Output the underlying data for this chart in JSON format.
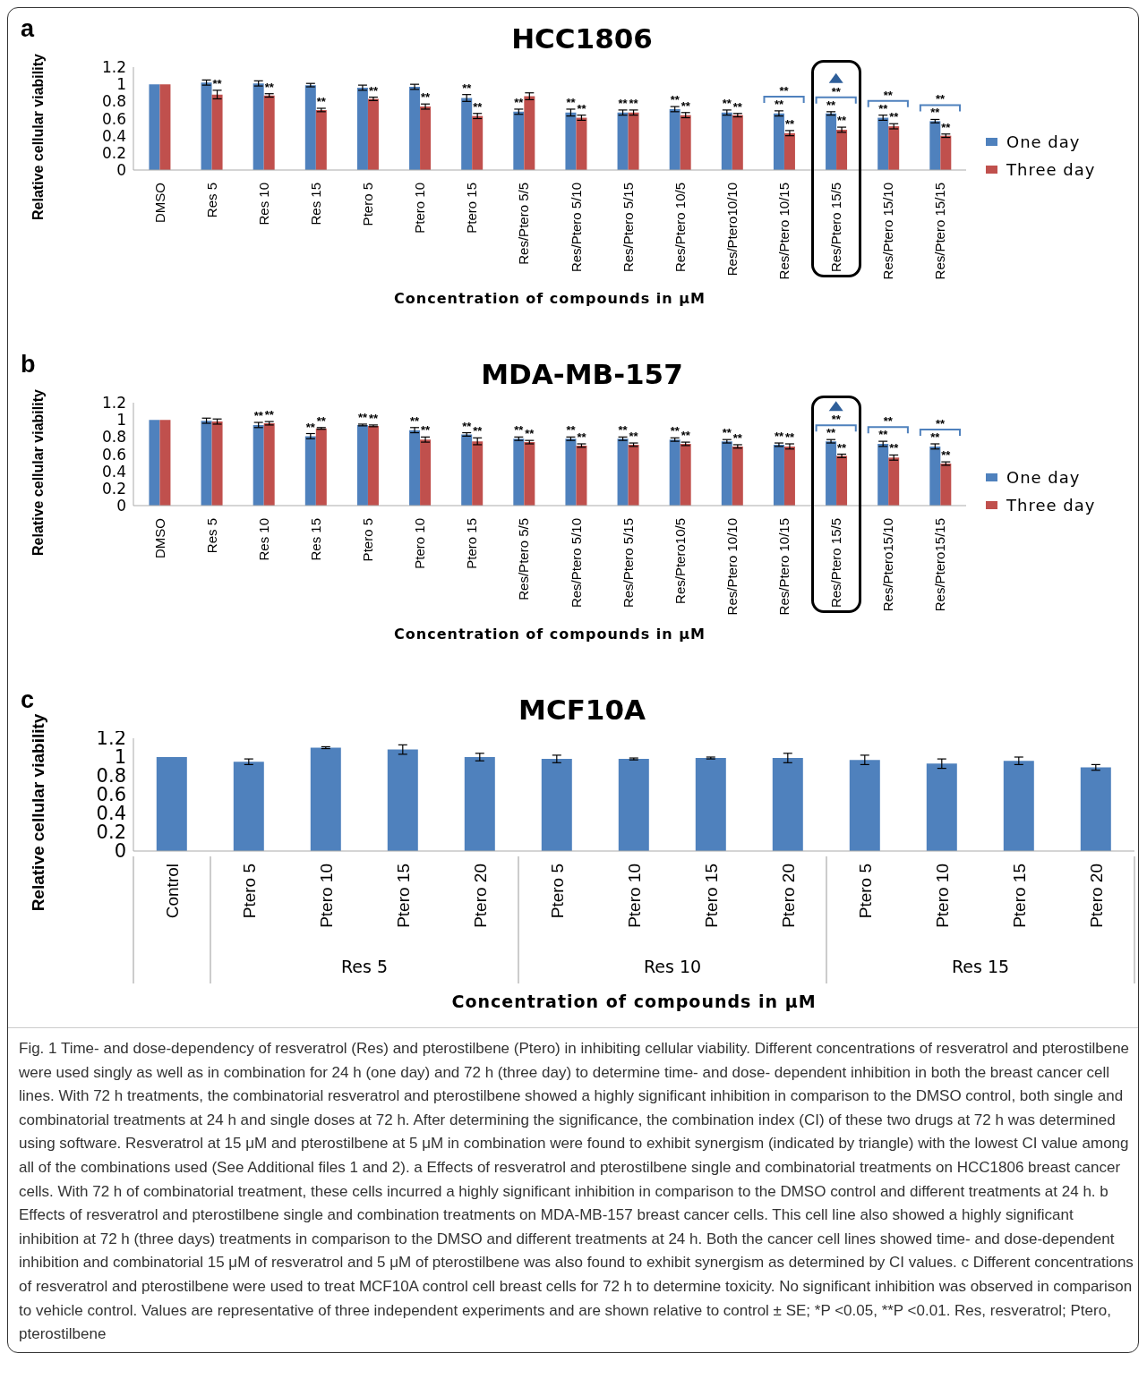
{
  "chart_data": [
    {
      "type": "bar",
      "title": "HCC1806",
      "xlabel": "Concentration of compounds in μM",
      "ylabel": "Relative cellular viability",
      "ylim": [
        0,
        1.2
      ],
      "yticks": [
        0,
        0.2,
        0.4,
        0.6,
        0.8,
        1,
        1.2
      ],
      "legend": "right",
      "categories": [
        "DMSO",
        "Res 5",
        "Res 10",
        "Res 15",
        "Ptero 5",
        "Ptero 10",
        "Ptero 15",
        "Res/Ptero 5/5",
        "Res/Ptero 5/10",
        "Res/Ptero 5/15",
        "Res/Ptero 10/5",
        "Res/Ptero10/10",
        "Res/Ptero 10/15",
        "Res/Ptero 15/5",
        "Res/Ptero 15/10",
        "Res/Ptero 15/15"
      ],
      "series": [
        {
          "name": "One day",
          "color": "#4f81bd",
          "values": [
            1,
            1.02,
            1.01,
            0.99,
            0.96,
            0.97,
            0.84,
            0.68,
            0.67,
            0.67,
            0.71,
            0.67,
            0.66,
            0.66,
            0.61,
            0.57
          ],
          "errors": [
            0,
            0.03,
            0.03,
            0.02,
            0.03,
            0.03,
            0.04,
            0.03,
            0.04,
            0.03,
            0.03,
            0.03,
            0.03,
            0.02,
            0.03,
            0.02
          ],
          "value_labels": [
            null,
            null,
            null,
            null,
            null,
            null,
            "**",
            "**",
            "**",
            "**",
            "**",
            "**",
            "**",
            "**",
            "**",
            "**"
          ]
        },
        {
          "name": "Three day",
          "color": "#c0504d",
          "values": [
            1,
            0.88,
            0.87,
            0.7,
            0.83,
            0.74,
            0.63,
            0.86,
            0.61,
            0.67,
            0.64,
            0.64,
            0.43,
            0.47,
            0.51,
            0.4
          ],
          "errors": [
            0,
            0.05,
            0.02,
            0.02,
            0.02,
            0.03,
            0.03,
            0.04,
            0.03,
            0.03,
            0.03,
            0.02,
            0.03,
            0.03,
            0.03,
            0.02
          ],
          "value_labels": [
            null,
            "**",
            "**",
            "**",
            "**",
            "**",
            "**",
            null,
            "**",
            "**",
            "**",
            "**",
            "**",
            "**",
            "**",
            "**"
          ]
        }
      ],
      "annotations": [
        "a",
        "**",
        "**",
        "**",
        "**"
      ]
    },
    {
      "type": "bar",
      "title": "MDA-MB-157",
      "xlabel": "Concentration of compounds in μM",
      "ylabel": "Relative cellular viability",
      "ylim": [
        0,
        1.2
      ],
      "yticks": [
        0,
        0.2,
        0.4,
        0.6,
        0.8,
        1,
        1.2
      ],
      "legend": "right",
      "categories": [
        "DMSO",
        "Res 5",
        "Res 10",
        "Res 15",
        "Ptero 5",
        "Ptero 10",
        "Ptero 15",
        "Res/Ptero 5/5",
        "Res/Ptero 5/10",
        "Res/Ptero 5/15",
        "Res/Ptero10/5",
        "Res/Ptero 10/10",
        "Res/Ptero 10/15",
        "Res/Ptero 15/5",
        "Res/Ptero15/10",
        "Res/Ptero15/15"
      ],
      "series": [
        {
          "name": "One day",
          "color": "#4f81bd",
          "values": [
            1,
            0.99,
            0.94,
            0.81,
            0.94,
            0.88,
            0.83,
            0.78,
            0.78,
            0.78,
            0.77,
            0.75,
            0.71,
            0.75,
            0.72,
            0.69
          ],
          "errors": [
            0,
            0.03,
            0.03,
            0.03,
            0.01,
            0.03,
            0.02,
            0.02,
            0.02,
            0.02,
            0.02,
            0.02,
            0.02,
            0.02,
            0.03,
            0.03
          ],
          "value_labels": [
            null,
            null,
            "**",
            "**",
            "**",
            "**",
            "**",
            "**",
            "**",
            "**",
            "**",
            "**",
            "**",
            "**",
            "**",
            "**"
          ]
        },
        {
          "name": "Three day",
          "color": "#c0504d",
          "values": [
            1,
            0.98,
            0.96,
            0.9,
            0.93,
            0.77,
            0.75,
            0.74,
            0.7,
            0.71,
            0.72,
            0.69,
            0.69,
            0.58,
            0.56,
            0.49
          ],
          "errors": [
            0,
            0.03,
            0.02,
            0.01,
            0.01,
            0.03,
            0.04,
            0.02,
            0.02,
            0.02,
            0.02,
            0.02,
            0.03,
            0.02,
            0.03,
            0.02
          ],
          "value_labels": [
            null,
            null,
            "**",
            "**",
            "**",
            "**",
            "**",
            "**",
            "**",
            "**",
            "**",
            "**",
            "**",
            "**",
            "**",
            "**"
          ]
        }
      ],
      "annotations": [
        "b",
        "**",
        "**",
        "**"
      ]
    },
    {
      "type": "bar",
      "title": "MCF10A",
      "xlabel": "Concentration of compounds in μM",
      "ylabel": "Relative cellular viability",
      "ylim": [
        0,
        1.2
      ],
      "yticks": [
        0,
        0.2,
        0.4,
        0.6,
        0.8,
        1,
        1.2
      ],
      "color": "#4f81bd",
      "categories": [
        "Control",
        "Ptero 5",
        "Ptero 10",
        "Ptero 15",
        "Ptero 20",
        "Ptero 5",
        "Ptero 10",
        "Ptero 15",
        "Ptero 20",
        "Ptero 5",
        "Ptero 10",
        "Ptero 15",
        "Ptero 20"
      ],
      "values": [
        1,
        0.95,
        1.1,
        1.08,
        1,
        0.98,
        0.98,
        0.99,
        0.99,
        0.97,
        0.93,
        0.96,
        0.89
      ],
      "errors": [
        0,
        0.03,
        0.01,
        0.05,
        0.04,
        0.04,
        0.01,
        0.01,
        0.05,
        0.05,
        0.05,
        0.04,
        0.03
      ],
      "annotations": [
        "c",
        "Res 5",
        "Res 10",
        "Res 15",
        "Fig. 1 Time- and dose-dependency of resveratrol (Res) and pterostilbene (Ptero) in inhibiting cellular viability. Different concentrations of resveratrol and pterostilbene were used singly as well as in combination for 24 h (one day) and 72 h (three day) to determine time- and dose- dependent inhibition in both the breast cancer cell lines. With 72 h treatments, the combinatorial resveratrol and pterostilbene showed a highly significant inhibition in comparison to the DMSO control, both single and combinatorial treatments at 24 h and single doses at 72 h. After determining the significance, the combination index (CI) of these two drugs at 72 h was determined using software. Resveratrol at 15 μM and pterostilbene at 5 μM in combination were found to exhibit synergism (indicated by triangle) with the lowest CI value among all of the combinations used (See Additional files 1 and 2). a Effects of resveratrol and pterostilbene single and combinatorial treatments on HCC1806 breast cancer cells. With 72 h of combinatorial treatment, these cells incurred a highly significant inhibition in comparison to the DMSO control and different treatments at 24 h. b Effects of resveratrol and pterostilbene single and combination treatments on MDA-MB-157 breast cancer cells. This cell line also showed a highly significant inhibition at 72 h (three days) treatments in comparison to the DMSO and different treatments at 24 h. Both the cancer cell lines showed time- and dose-dependent inhibition and combinatorial 15 μM of resveratrol and 5 μM of pterostilbene was also found to exhibit synergism as determined by CI values. c Different concentrations of resveratrol and pterostilbene were used to treat MCF10A control cell breast cells for 72 h to determine toxicity. No significant inhibition was observed in comparison to vehicle control. Values are representative of three independent experiments and are shown relative to control ± SE; *P <0.05, **P <0.01. Res, resveratrol; Ptero, pterostilbene"
      ]
    }
  ]
}
